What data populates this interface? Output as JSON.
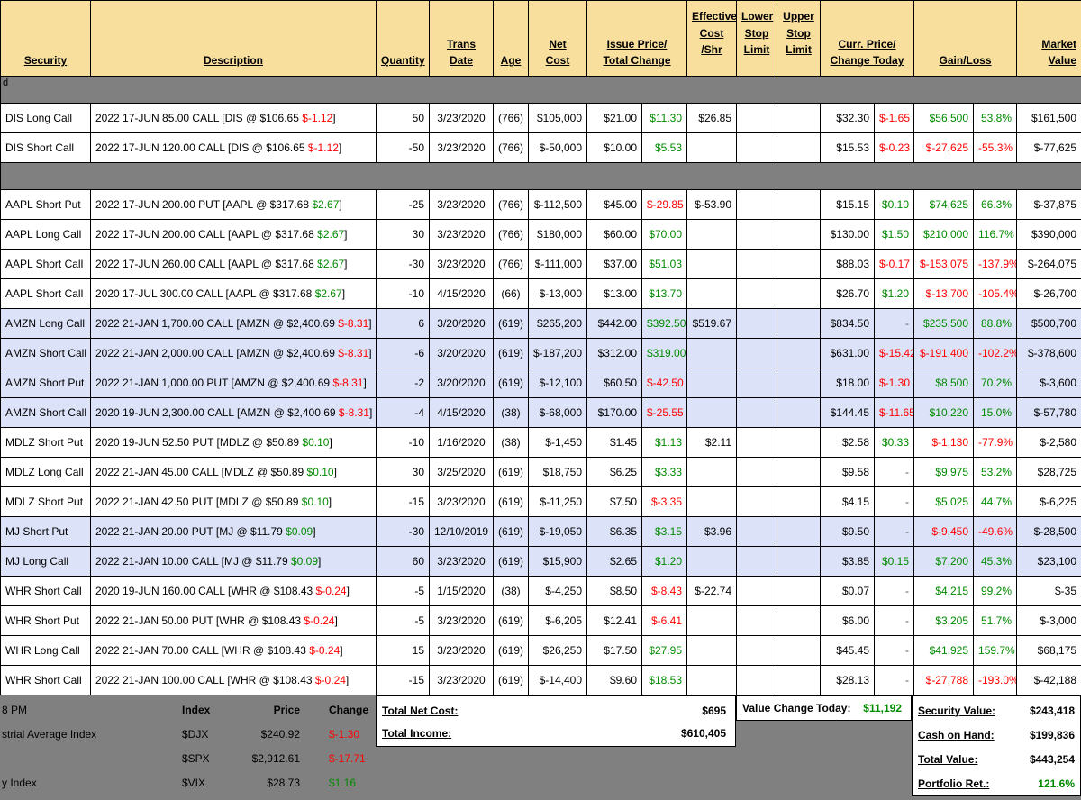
{
  "colors": {
    "positive": "#008A00",
    "negative": "#FF0000",
    "header_bg": "#F8DF9E",
    "highlight_row": "#DCE2F8",
    "divider": "#808080"
  },
  "header": {
    "security": "Security",
    "description": "Description",
    "quantity": "Quantity",
    "trans1": "Trans",
    "trans2": "Date",
    "age": "Age",
    "net1": "Net",
    "net2": "Cost",
    "issue1": "Issue Price/",
    "issue2": "Total Change",
    "eff1": "Effective",
    "eff2": "Cost",
    "eff3": "/Shr",
    "lower1": "Lower",
    "lower2": "Stop",
    "lower3": "Limit",
    "upper1": "Upper",
    "upper2": "Stop",
    "upper3": "Limit",
    "curr1": "Curr. Price/",
    "curr2": "Change Today",
    "gain": "Gain/Loss",
    "mkt1": "Market",
    "mkt2": "Value"
  },
  "rows": [
    {
      "type": "divider",
      "label": "d"
    },
    {
      "type": "position",
      "security": "DIS Long Call",
      "desc_pre": "2022 17-JUN 85.00 CALL [DIS @ $106.65",
      "desc_chg": "$-1.12",
      "qty": "50",
      "date": "3/23/2020",
      "age": "(766)",
      "net_cost": "$105,000",
      "issue": "$21.00",
      "total_chg": "$11.30",
      "eff": "$26.85",
      "curr": "$32.30",
      "chg_today": "$-1.65",
      "gain": "$56,500",
      "gain_pct": "53.8%",
      "mkt": "$161,500",
      "highlight": false
    },
    {
      "type": "position",
      "security": "DIS Short Call",
      "desc_pre": "2022 17-JUN 120.00 CALL [DIS @ $106.65",
      "desc_chg": "$-1.12",
      "qty": "-50",
      "date": "3/23/2020",
      "age": "(766)",
      "net_cost": "$-50,000",
      "issue": "$10.00",
      "total_chg": "$5.53",
      "eff": "",
      "curr": "$15.53",
      "chg_today": "$-0.23",
      "gain": "$-27,625",
      "gain_pct": "-55.3%",
      "mkt": "$-77,625",
      "highlight": false
    },
    {
      "type": "divider",
      "label": ""
    },
    {
      "type": "position",
      "security": "AAPL Short Put",
      "desc_pre": "2022 17-JUN 200.00 PUT [AAPL @ $317.68",
      "desc_chg": "$2.67",
      "qty": "-25",
      "date": "3/23/2020",
      "age": "(766)",
      "net_cost": "$-112,500",
      "issue": "$45.00",
      "total_chg": "$-29.85",
      "eff": "$-53.90",
      "curr": "$15.15",
      "chg_today": "$0.10",
      "gain": "$74,625",
      "gain_pct": "66.3%",
      "mkt": "$-37,875",
      "highlight": false
    },
    {
      "type": "position",
      "security": "AAPL Long Call",
      "desc_pre": "2022 17-JUN 200.00 CALL [AAPL @ $317.68",
      "desc_chg": "$2.67",
      "qty": "30",
      "date": "3/23/2020",
      "age": "(766)",
      "net_cost": "$180,000",
      "issue": "$60.00",
      "total_chg": "$70.00",
      "eff": "",
      "curr": "$130.00",
      "chg_today": "$1.50",
      "gain": "$210,000",
      "gain_pct": "116.7%",
      "mkt": "$390,000",
      "highlight": false
    },
    {
      "type": "position",
      "security": "AAPL Short Call",
      "desc_pre": "2022 17-JUN 260.00 CALL [AAPL @ $317.68",
      "desc_chg": "$2.67",
      "qty": "-30",
      "date": "3/23/2020",
      "age": "(766)",
      "net_cost": "$-111,000",
      "issue": "$37.00",
      "total_chg": "$51.03",
      "eff": "",
      "curr": "$88.03",
      "chg_today": "$-0.17",
      "gain": "$-153,075",
      "gain_pct": "-137.9%",
      "mkt": "$-264,075",
      "highlight": false
    },
    {
      "type": "position",
      "security": "AAPL Short Call",
      "desc_pre": "2020 17-JUL 300.00 CALL [AAPL @ $317.68",
      "desc_chg": "$2.67",
      "qty": "-10",
      "date": "4/15/2020",
      "age": "(66)",
      "net_cost": "$-13,000",
      "issue": "$13.00",
      "total_chg": "$13.70",
      "eff": "",
      "curr": "$26.70",
      "chg_today": "$1.20",
      "gain": "$-13,700",
      "gain_pct": "-105.4%",
      "mkt": "$-26,700",
      "highlight": false
    },
    {
      "type": "position",
      "security": "AMZN Long Call",
      "desc_pre": "2022 21-JAN 1,700.00 CALL [AMZN @ $2,400.69",
      "desc_chg": "$-8.31",
      "qty": "6",
      "date": "3/20/2020",
      "age": "(619)",
      "net_cost": "$265,200",
      "issue": "$442.00",
      "total_chg": "$392.50",
      "eff": "$519.67",
      "curr": "$834.50",
      "chg_today": "-",
      "gain": "$235,500",
      "gain_pct": "88.8%",
      "mkt": "$500,700",
      "highlight": true
    },
    {
      "type": "position",
      "security": "AMZN Short Call",
      "desc_pre": "2022 21-JAN 2,000.00 CALL [AMZN @ $2,400.69",
      "desc_chg": "$-8.31",
      "qty": "-6",
      "date": "3/20/2020",
      "age": "(619)",
      "net_cost": "$-187,200",
      "issue": "$312.00",
      "total_chg": "$319.00",
      "eff": "",
      "curr": "$631.00",
      "chg_today": "$-15.42",
      "gain": "$-191,400",
      "gain_pct": "-102.2%",
      "mkt": "$-378,600",
      "highlight": true
    },
    {
      "type": "position",
      "security": "AMZN Short Put",
      "desc_pre": "2022 21-JAN 1,000.00 PUT [AMZN @ $2,400.69",
      "desc_chg": "$-8.31",
      "qty": "-2",
      "date": "3/20/2020",
      "age": "(619)",
      "net_cost": "$-12,100",
      "issue": "$60.50",
      "total_chg": "$-42.50",
      "eff": "",
      "curr": "$18.00",
      "chg_today": "$-1.30",
      "gain": "$8,500",
      "gain_pct": "70.2%",
      "mkt": "$-3,600",
      "highlight": true
    },
    {
      "type": "position",
      "security": "AMZN Short Call",
      "desc_pre": "2020 19-JUN 2,300.00 CALL [AMZN @ $2,400.69",
      "desc_chg": "$-8.31",
      "qty": "-4",
      "date": "4/15/2020",
      "age": "(38)",
      "net_cost": "$-68,000",
      "issue": "$170.00",
      "total_chg": "$-25.55",
      "eff": "",
      "curr": "$144.45",
      "chg_today": "$-11.65",
      "gain": "$10,220",
      "gain_pct": "15.0%",
      "mkt": "$-57,780",
      "highlight": true
    },
    {
      "type": "position",
      "security": "MDLZ Short Put",
      "desc_pre": "2020 19-JUN 52.50 PUT [MDLZ @ $50.89",
      "desc_chg": "$0.10",
      "qty": "-10",
      "date": "1/16/2020",
      "age": "(38)",
      "net_cost": "$-1,450",
      "issue": "$1.45",
      "total_chg": "$1.13",
      "eff": "$2.11",
      "curr": "$2.58",
      "chg_today": "$0.33",
      "gain": "$-1,130",
      "gain_pct": "-77.9%",
      "mkt": "$-2,580",
      "highlight": false
    },
    {
      "type": "position",
      "security": "MDLZ Long Call",
      "desc_pre": "2022 21-JAN 45.00 CALL [MDLZ @ $50.89",
      "desc_chg": "$0.10",
      "qty": "30",
      "date": "3/25/2020",
      "age": "(619)",
      "net_cost": "$18,750",
      "issue": "$6.25",
      "total_chg": "$3.33",
      "eff": "",
      "curr": "$9.58",
      "chg_today": "-",
      "gain": "$9,975",
      "gain_pct": "53.2%",
      "mkt": "$28,725",
      "highlight": false
    },
    {
      "type": "position",
      "security": "MDLZ Short Put",
      "desc_pre": "2022 21-JAN 42.50 PUT [MDLZ @ $50.89",
      "desc_chg": "$0.10",
      "qty": "-15",
      "date": "3/23/2020",
      "age": "(619)",
      "net_cost": "$-11,250",
      "issue": "$7.50",
      "total_chg": "$-3.35",
      "eff": "",
      "curr": "$4.15",
      "chg_today": "-",
      "gain": "$5,025",
      "gain_pct": "44.7%",
      "mkt": "$-6,225",
      "highlight": false
    },
    {
      "type": "position",
      "security": "MJ Short Put",
      "desc_pre": "2022 21-JAN 20.00 PUT [MJ @ $11.79",
      "desc_chg": "$0.09",
      "qty": "-30",
      "date": "12/10/2019",
      "age": "(619)",
      "net_cost": "$-19,050",
      "issue": "$6.35",
      "total_chg": "$3.15",
      "eff": "$3.96",
      "curr": "$9.50",
      "chg_today": "-",
      "gain": "$-9,450",
      "gain_pct": "-49.6%",
      "mkt": "$-28,500",
      "highlight": true
    },
    {
      "type": "position",
      "security": "MJ Long Call",
      "desc_pre": "2022 21-JAN 10.00 CALL [MJ @ $11.79",
      "desc_chg": "$0.09",
      "qty": "60",
      "date": "3/23/2020",
      "age": "(619)",
      "net_cost": "$15,900",
      "issue": "$2.65",
      "total_chg": "$1.20",
      "eff": "",
      "curr": "$3.85",
      "chg_today": "$0.15",
      "gain": "$7,200",
      "gain_pct": "45.3%",
      "mkt": "$23,100",
      "highlight": true
    },
    {
      "type": "position",
      "security": "WHR Short Call",
      "desc_pre": "2020 19-JUN 160.00 CALL [WHR @ $108.43",
      "desc_chg": "$-0.24",
      "qty": "-5",
      "date": "1/15/2020",
      "age": "(38)",
      "net_cost": "$-4,250",
      "issue": "$8.50",
      "total_chg": "$-8.43",
      "eff": "$-22.74",
      "curr": "$0.07",
      "chg_today": "-",
      "gain": "$4,215",
      "gain_pct": "99.2%",
      "mkt": "$-35",
      "highlight": false
    },
    {
      "type": "position",
      "security": "WHR Short Put",
      "desc_pre": "2022 21-JAN 50.00 PUT [WHR @ $108.43",
      "desc_chg": "$-0.24",
      "qty": "-5",
      "date": "3/23/2020",
      "age": "(619)",
      "net_cost": "$-6,205",
      "issue": "$12.41",
      "total_chg": "$-6.41",
      "eff": "",
      "curr": "$6.00",
      "chg_today": "-",
      "gain": "$3,205",
      "gain_pct": "51.7%",
      "mkt": "$-3,000",
      "highlight": false
    },
    {
      "type": "position",
      "security": "WHR Long Call",
      "desc_pre": "2022 21-JAN 70.00 CALL [WHR @ $108.43",
      "desc_chg": "$-0.24",
      "qty": "15",
      "date": "3/23/2020",
      "age": "(619)",
      "net_cost": "$26,250",
      "issue": "$17.50",
      "total_chg": "$27.95",
      "eff": "",
      "curr": "$45.45",
      "chg_today": "-",
      "gain": "$41,925",
      "gain_pct": "159.7%",
      "mkt": "$68,175",
      "highlight": false
    },
    {
      "type": "position",
      "security": "WHR Short Call",
      "desc_pre": "2022 21-JAN 100.00 CALL [WHR @ $108.43",
      "desc_chg": "$-0.24",
      "qty": "-15",
      "date": "3/23/2020",
      "age": "(619)",
      "net_cost": "$-14,400",
      "issue": "$9.60",
      "total_chg": "$18.53",
      "eff": "",
      "curr": "$28.13",
      "chg_today": "-",
      "gain": "$-27,788",
      "gain_pct": "-193.0%",
      "mkt": "$-42,188",
      "highlight": false
    }
  ],
  "footer": {
    "time_text": "8 PM",
    "left_labels": {
      "row2": "strial Average Index",
      "row3": "",
      "row4": "y Index"
    },
    "index_table": {
      "headers": [
        "Index",
        "Price",
        "Change"
      ],
      "rows": [
        [
          "$DJX",
          "$240.92",
          "$-1.30"
        ],
        [
          "$SPX",
          "$2,912.61",
          "$-17.71"
        ],
        [
          "$VIX",
          "$28.73",
          "$1.16"
        ]
      ]
    },
    "total_net_cost_label": "Total Net Cost:",
    "total_net_cost": "$695",
    "total_income_label": "Total Income:",
    "total_income": "$610,405",
    "value_change_label": "Value Change Today:",
    "value_change": "$11,192",
    "summary": [
      {
        "label": "Security Value:",
        "value": "$243,418"
      },
      {
        "label": "Cash on Hand:",
        "value": "$199,836"
      },
      {
        "label": "Total Value:",
        "value": "$443,254"
      },
      {
        "label": "Portfolio Ret.:",
        "value": "121.6%"
      }
    ]
  }
}
